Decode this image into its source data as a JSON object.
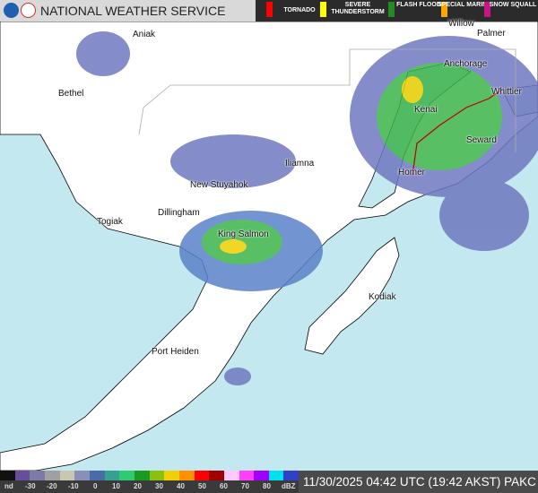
{
  "header": {
    "title": "NATIONAL WEATHER SERVICE",
    "warnings": [
      {
        "label": "TORNADO",
        "color": "#ff0000"
      },
      {
        "label": "SEVERE THUNDERSTORM",
        "color": "#ffff00"
      },
      {
        "label": "FLASH FLOOD",
        "color": "#228b22"
      },
      {
        "label": "SPECIAL MARINE",
        "color": "#ffa500"
      },
      {
        "label": "SNOW SQUALL",
        "color": "#c71585"
      }
    ]
  },
  "map": {
    "places": [
      "Aniak",
      "Bethel",
      "Iliamna",
      "New Stuyahok",
      "Dillingham",
      "Togiak",
      "King Salmon",
      "Port Heiden",
      "Kodiak",
      "Homer",
      "Seward",
      "Kenai",
      "Anchorage",
      "Whittier",
      "Palmer",
      "Willow"
    ],
    "colors": {
      "water": "#c3e8ef",
      "land": "#ffffff"
    }
  },
  "legend": {
    "ticks": [
      "nd",
      "-30",
      "-20",
      "-10",
      "0",
      "10",
      "20",
      "30",
      "40",
      "50",
      "60",
      "70",
      "80",
      "dBZ"
    ]
  },
  "footer": {
    "timestamp": "11/30/2025 04:42 UTC (19:42 AKST)",
    "station": "PAKC"
  }
}
